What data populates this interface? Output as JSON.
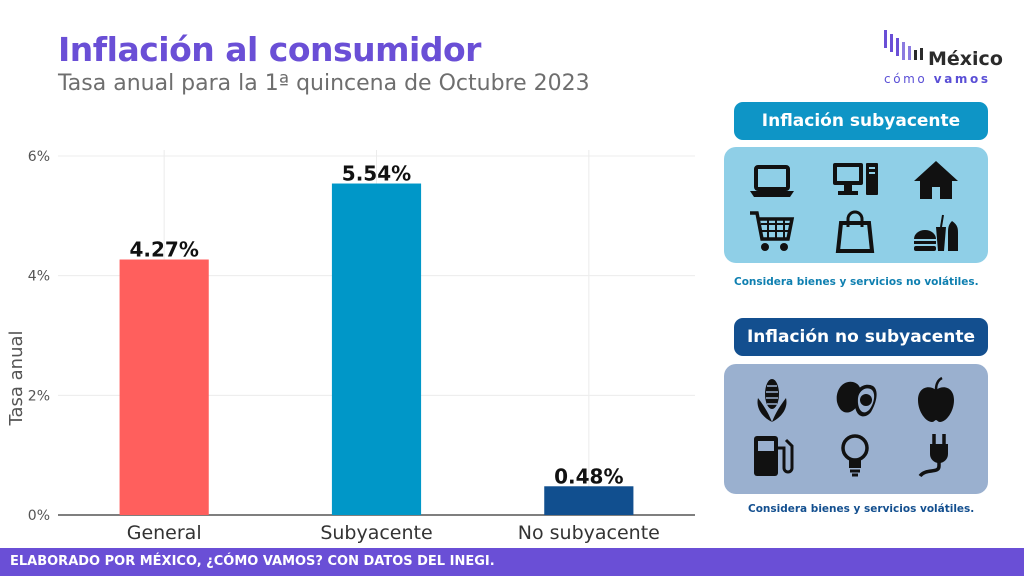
{
  "header": {
    "title": "Inflación al consumidor",
    "subtitle": "Tasa anual para la 1ª quincena de Octubre 2023"
  },
  "logo": {
    "line1": "México",
    "line2a": "cómo",
    "line2b": "vamos"
  },
  "chart_data": {
    "type": "bar",
    "categories": [
      "General",
      "Subyacente",
      "No subyacente"
    ],
    "values": [
      4.27,
      5.54,
      0.48
    ],
    "value_labels": [
      "4.27%",
      "5.54%",
      "0.48%"
    ],
    "colors": [
      "#ff5f5d",
      "#0097c8",
      "#114f8f"
    ],
    "ylabel": "Tasa anual",
    "ylim": [
      0,
      6
    ],
    "yticks": [
      0,
      2,
      4,
      6
    ],
    "ytick_labels": [
      "0%",
      "2%",
      "4%",
      "6%"
    ],
    "grid": true
  },
  "panels": {
    "core": {
      "title": "Inflación subyacente",
      "note": "Considera bienes y servicios no volátiles.",
      "title_color": "#0e95c6",
      "box_color": "#8fcfe7",
      "note_color": "#0e7fb0",
      "icons": [
        "laptop-icon",
        "desktop-computer-icon",
        "house-icon",
        "shopping-cart-icon",
        "shopping-bag-icon",
        "fast-food-icon"
      ]
    },
    "noncore": {
      "title": "Inflación no subyacente",
      "note": "Considera bienes y servicios volátiles.",
      "title_color": "#134f8f",
      "box_color": "#9ab0cf",
      "note_color": "#134f8f",
      "icons": [
        "corn-icon",
        "avocado-icon",
        "apple-icon",
        "gas-pump-icon",
        "light-bulb-icon",
        "electric-plug-icon"
      ]
    }
  },
  "footer": {
    "text": "ELABORADO POR MÉXICO, ¿CÓMO VAMOS? CON DATOS DEL INEGI."
  }
}
